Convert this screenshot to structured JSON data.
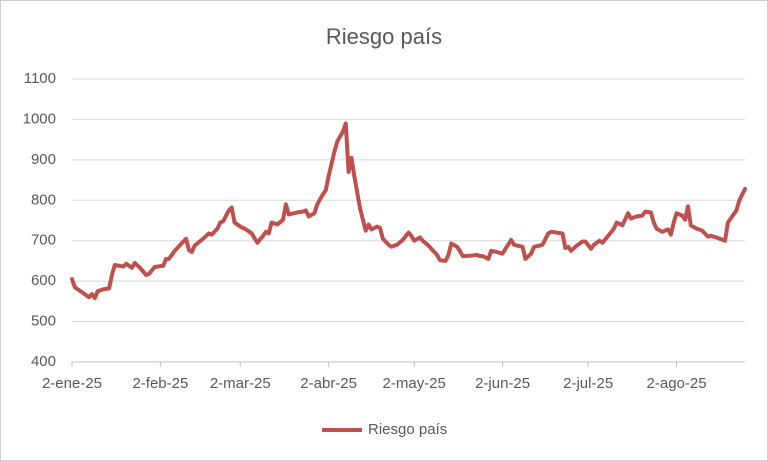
{
  "chart_data": {
    "type": "line",
    "title": "Riesgo país",
    "x": [
      "2025-01-02",
      "2025-01-03",
      "2025-01-05",
      "2025-01-07",
      "2025-01-08",
      "2025-01-09",
      "2025-01-10",
      "2025-01-11",
      "2025-01-13",
      "2025-01-15",
      "2025-01-16",
      "2025-01-17",
      "2025-01-20",
      "2025-01-21",
      "2025-01-23",
      "2025-01-24",
      "2025-01-26",
      "2025-01-28",
      "2025-01-29",
      "2025-01-31",
      "2025-02-03",
      "2025-02-04",
      "2025-02-05",
      "2025-02-07",
      "2025-02-09",
      "2025-02-11",
      "2025-02-12",
      "2025-02-13",
      "2025-02-14",
      "2025-02-17",
      "2025-02-19",
      "2025-02-20",
      "2025-02-22",
      "2025-02-23",
      "2025-02-24",
      "2025-02-26",
      "2025-02-27",
      "2025-02-28",
      "2025-03-02",
      "2025-03-04",
      "2025-03-06",
      "2025-03-08",
      "2025-03-10",
      "2025-03-11",
      "2025-03-12",
      "2025-03-13",
      "2025-03-15",
      "2025-03-17",
      "2025-03-18",
      "2025-03-19",
      "2025-03-22",
      "2025-03-24",
      "2025-03-25",
      "2025-03-26",
      "2025-03-28",
      "2025-03-29",
      "2025-03-31",
      "2025-04-01",
      "2025-04-02",
      "2025-04-04",
      "2025-04-05",
      "2025-04-07",
      "2025-04-08",
      "2025-04-09",
      "2025-04-10",
      "2025-04-11",
      "2025-04-13",
      "2025-04-15",
      "2025-04-16",
      "2025-04-17",
      "2025-04-19",
      "2025-04-20",
      "2025-04-21",
      "2025-04-23",
      "2025-04-24",
      "2025-04-26",
      "2025-04-28",
      "2025-04-30",
      "2025-05-01",
      "2025-05-02",
      "2025-05-04",
      "2025-05-05",
      "2025-05-07",
      "2025-05-08",
      "2025-05-10",
      "2025-05-11",
      "2025-05-13",
      "2025-05-14",
      "2025-05-15",
      "2025-05-17",
      "2025-05-18",
      "2025-05-19",
      "2025-05-22",
      "2025-05-24",
      "2025-05-25",
      "2025-05-26",
      "2025-05-28",
      "2025-05-29",
      "2025-05-31",
      "2025-06-02",
      "2025-06-03",
      "2025-06-05",
      "2025-06-06",
      "2025-06-07",
      "2025-06-09",
      "2025-06-10",
      "2025-06-12",
      "2025-06-13",
      "2025-06-15",
      "2025-06-16",
      "2025-06-18",
      "2025-06-19",
      "2025-06-21",
      "2025-06-23",
      "2025-06-24",
      "2025-06-25",
      "2025-06-26",
      "2025-06-28",
      "2025-06-30",
      "2025-07-01",
      "2025-07-03",
      "2025-07-04",
      "2025-07-06",
      "2025-07-07",
      "2025-07-09",
      "2025-07-11",
      "2025-07-12",
      "2025-07-14",
      "2025-07-16",
      "2025-07-17",
      "2025-07-19",
      "2025-07-21",
      "2025-07-22",
      "2025-07-24",
      "2025-07-25",
      "2025-07-26",
      "2025-07-28",
      "2025-07-30",
      "2025-07-31",
      "2025-08-01",
      "2025-08-02",
      "2025-08-04",
      "2025-08-05",
      "2025-08-06",
      "2025-08-07",
      "2025-08-09",
      "2025-08-11",
      "2025-08-13",
      "2025-08-14",
      "2025-08-16",
      "2025-08-19",
      "2025-08-20",
      "2025-08-21",
      "2025-08-23",
      "2025-08-24",
      "2025-08-26"
    ],
    "series": [
      {
        "name": "Riesgo país",
        "color": "#c0504d",
        "values": [
          605,
          585,
          575,
          565,
          560,
          568,
          558,
          575,
          580,
          582,
          615,
          640,
          636,
          643,
          633,
          645,
          632,
          615,
          618,
          635,
          638,
          655,
          655,
          675,
          690,
          705,
          677,
          672,
          688,
          705,
          718,
          715,
          730,
          745,
          748,
          775,
          782,
          745,
          735,
          728,
          718,
          695,
          712,
          722,
          718,
          745,
          740,
          752,
          790,
          765,
          770,
          772,
          775,
          760,
          768,
          790,
          815,
          825,
          860,
          920,
          945,
          970,
          990,
          870,
          905,
          860,
          780,
          725,
          740,
          728,
          735,
          732,
          705,
          690,
          685,
          690,
          702,
          720,
          712,
          700,
          708,
          700,
          688,
          680,
          665,
          652,
          650,
          665,
          693,
          685,
          675,
          662,
          663,
          665,
          662,
          662,
          655,
          675,
          672,
          668,
          680,
          702,
          690,
          688,
          685,
          655,
          668,
          685,
          688,
          690,
          718,
          722,
          720,
          718,
          682,
          685,
          675,
          688,
          698,
          698,
          680,
          690,
          700,
          695,
          712,
          730,
          745,
          738,
          768,
          755,
          760,
          762,
          772,
          770,
          745,
          730,
          722,
          728,
          715,
          745,
          768,
          762,
          752,
          785,
          738,
          730,
          725,
          710,
          712,
          708,
          700,
          745,
          755,
          775,
          800,
          828
        ]
      }
    ],
    "xlim": [
      "2025-01-02",
      "2025-08-26"
    ],
    "xticks": [
      {
        "value": "2025-01-02",
        "label": "2-ene-25"
      },
      {
        "value": "2025-02-02",
        "label": "2-feb-25"
      },
      {
        "value": "2025-03-02",
        "label": "2-mar-25"
      },
      {
        "value": "2025-04-02",
        "label": "2-abr-25"
      },
      {
        "value": "2025-05-02",
        "label": "2-may-25"
      },
      {
        "value": "2025-06-02",
        "label": "2-jun-25"
      },
      {
        "value": "2025-07-02",
        "label": "2-jul-25"
      },
      {
        "value": "2025-08-02",
        "label": "2-ago-25"
      }
    ],
    "ylim": [
      400,
      1100
    ],
    "yticks": [
      400,
      500,
      600,
      700,
      800,
      900,
      1000,
      1100
    ],
    "grid": true,
    "legend": "bottom"
  }
}
